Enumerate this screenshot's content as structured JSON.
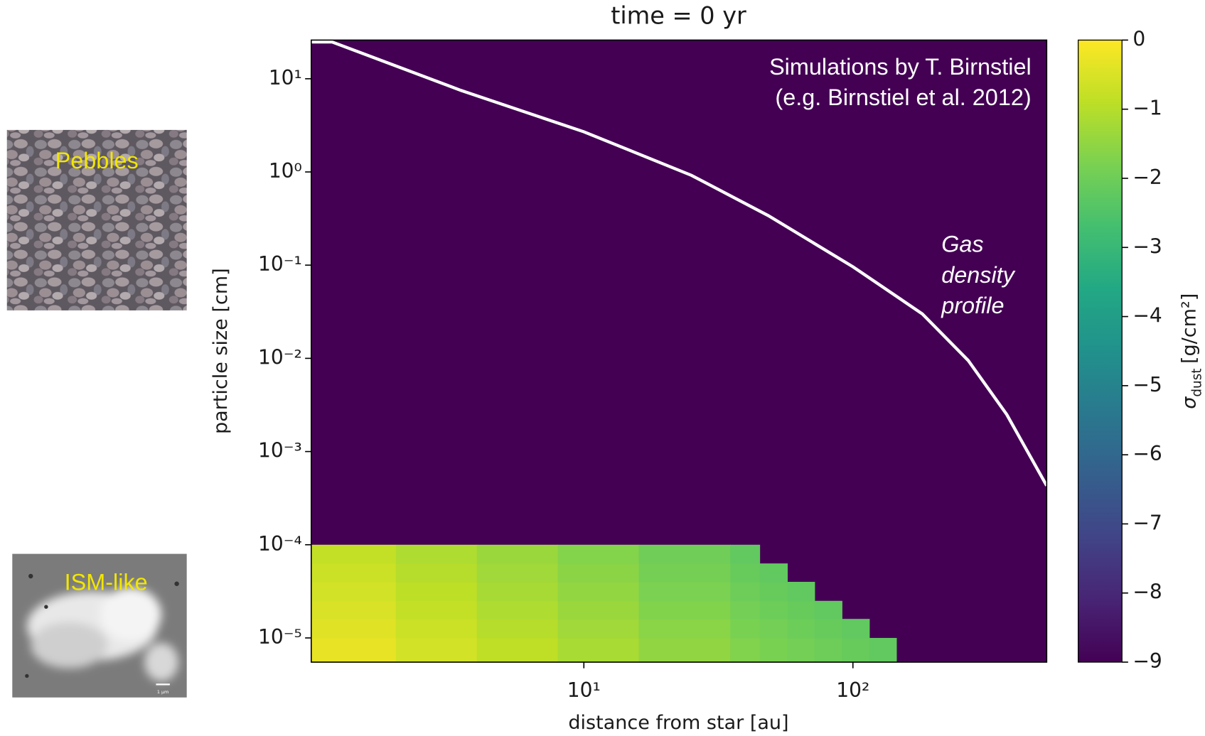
{
  "chart_data": {
    "type": "heatmap",
    "title": "time = 0 yr",
    "xlabel": "distance from star [au]",
    "ylabel": "particle size [cm]",
    "xscale": "log",
    "yscale": "log",
    "xlim": [
      0.97,
      525
    ],
    "ylim": [
      5.5e-06,
      26
    ],
    "xticks": [
      {
        "value": 10,
        "label": "10¹"
      },
      {
        "value": 100,
        "label": "10²"
      }
    ],
    "yticks": [
      {
        "value": 1e-05,
        "label": "10⁻⁵"
      },
      {
        "value": 0.0001,
        "label": "10⁻⁴"
      },
      {
        "value": 0.001,
        "label": "10⁻³"
      },
      {
        "value": 0.01,
        "label": "10⁻²"
      },
      {
        "value": 0.1,
        "label": "10⁻¹"
      },
      {
        "value": 1,
        "label": "10⁰"
      },
      {
        "value": 10,
        "label": "10¹"
      }
    ],
    "x_edges": [
      0.97,
      2,
      4,
      8,
      16,
      35,
      45,
      57,
      72,
      91,
      115,
      145
    ],
    "y_edges": [
      5.5e-06,
      1e-05,
      1.6e-05,
      2.5e-05,
      4e-05,
      6.3e-05,
      0.0001
    ],
    "z": [
      [
        -0.3,
        -0.6,
        -0.89,
        -1.18,
        -1.49,
        -1.71,
        -1.81,
        -1.91,
        -2.01,
        -2.11,
        -2.21
      ],
      [
        -0.41,
        -0.71,
        -1.0,
        -1.29,
        -1.6,
        -1.82,
        -1.92,
        -2.02,
        -2.12,
        -2.22,
        null
      ],
      [
        -0.51,
        -0.81,
        -1.1,
        -1.39,
        -1.7,
        -1.92,
        -2.02,
        -2.12,
        -2.22,
        null,
        null
      ],
      [
        -0.6,
        -0.9,
        -1.19,
        -1.48,
        -1.79,
        -2.01,
        -2.11,
        -2.21,
        null,
        null,
        null
      ],
      [
        -0.7,
        -1.0,
        -1.29,
        -1.58,
        -1.89,
        -2.11,
        -2.21,
        null,
        null,
        null,
        null
      ],
      [
        -0.8,
        -1.1,
        -1.39,
        -1.68,
        -1.99,
        -2.21,
        null,
        null,
        null,
        null,
        null
      ]
    ],
    "colormap": "viridis",
    "clim": [
      -9,
      0
    ],
    "cticks": [
      0,
      {
        "value": -1,
        "label": "−1"
      },
      {
        "value": -2,
        "label": "−2"
      },
      {
        "value": -3,
        "label": "−3"
      },
      {
        "value": -4,
        "label": "−4"
      },
      {
        "value": -5,
        "label": "−5"
      },
      {
        "value": -6,
        "label": "−6"
      },
      {
        "value": -7,
        "label": "−7"
      },
      {
        "value": -8,
        "label": "−8"
      },
      {
        "value": -9,
        "label": "−9"
      }
    ],
    "colorbar_label": {
      "symbol": "σ",
      "subscript": "dust",
      "unit": "[g/cm²]"
    },
    "series": [
      {
        "color": "#ffffff",
        "x": [
          0.97,
          1.16,
          3.49,
          10,
          25.1,
          48.5,
          100,
          181,
          268,
          373,
          525
        ],
        "values": [
          24.8,
          24.8,
          7.5,
          2.7,
          0.92,
          0.34,
          0.096,
          0.03,
          0.0095,
          0.0025,
          0.00043
        ]
      }
    ],
    "annotations": [
      "Simulations by T. Birnstiel",
      "(e.g. Birnstiel et al. 2012)"
    ],
    "curve_label": [
      "Gas",
      "density",
      "profile"
    ]
  },
  "images": [
    {
      "label": "Pebbles"
    },
    {
      "label": "ISM-like",
      "scale_bar": "1 μm"
    }
  ]
}
